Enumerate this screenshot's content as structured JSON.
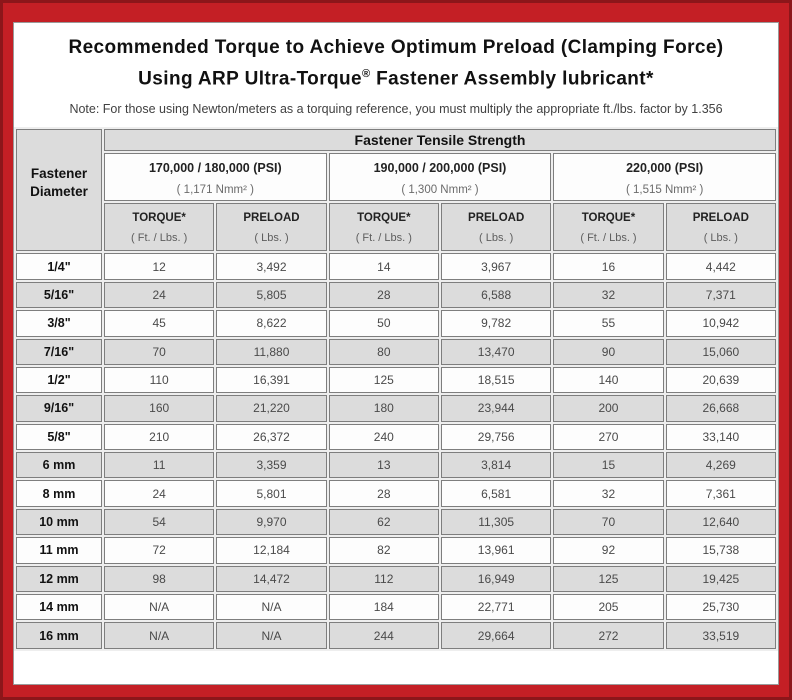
{
  "colors": {
    "frame_outer": "#8c161a",
    "frame_inner": "#c41f25",
    "cell_gray": "#dcdcdc",
    "cell_white": "#fdfdfd",
    "cell_border": "#7e7e7e"
  },
  "title": {
    "line1": "Recommended Torque to Achieve Optimum Preload (Clamping Force)",
    "line2_a": "Using ARP Ultra-Torque",
    "line2_sup": "®",
    "line2_b": " Fastener Assembly lubricant*"
  },
  "note": "Note: For those using Newton/meters as a torquing reference, you must multiply the appropriate ft./lbs. factor by 1.356",
  "table": {
    "corner_label": "Fastener Diameter",
    "group_header": "Fastener Tensile Strength",
    "strength_columns": [
      {
        "psi": "170,000 / 180,000 (PSI)",
        "nmm": "( 1,171 Nmm² )"
      },
      {
        "psi": "190,000 / 200,000 (PSI)",
        "nmm": "( 1,300 Nmm² )"
      },
      {
        "psi": "220,000 (PSI)",
        "nmm": "( 1,515 Nmm² )"
      }
    ],
    "column_headers": [
      {
        "title": "TORQUE*",
        "unit": "( Ft. / Lbs. )"
      },
      {
        "title": "PRELOAD",
        "unit": "( Lbs. )"
      },
      {
        "title": "TORQUE*",
        "unit": "( Ft. / Lbs. )"
      },
      {
        "title": "PRELOAD",
        "unit": "( Lbs. )"
      },
      {
        "title": "TORQUE*",
        "unit": "( Ft. / Lbs. )"
      },
      {
        "title": "PRELOAD",
        "unit": "( Lbs. )"
      }
    ],
    "rows": [
      {
        "diameter": "1/4\"",
        "values": [
          "12",
          "3,492",
          "14",
          "3,967",
          "16",
          "4,442"
        ]
      },
      {
        "diameter": "5/16\"",
        "values": [
          "24",
          "5,805",
          "28",
          "6,588",
          "32",
          "7,371"
        ]
      },
      {
        "diameter": "3/8\"",
        "values": [
          "45",
          "8,622",
          "50",
          "9,782",
          "55",
          "10,942"
        ]
      },
      {
        "diameter": "7/16\"",
        "values": [
          "70",
          "11,880",
          "80",
          "13,470",
          "90",
          "15,060"
        ]
      },
      {
        "diameter": "1/2\"",
        "values": [
          "110",
          "16,391",
          "125",
          "18,515",
          "140",
          "20,639"
        ]
      },
      {
        "diameter": "9/16\"",
        "values": [
          "160",
          "21,220",
          "180",
          "23,944",
          "200",
          "26,668"
        ]
      },
      {
        "diameter": "5/8\"",
        "values": [
          "210",
          "26,372",
          "240",
          "29,756",
          "270",
          "33,140"
        ]
      },
      {
        "diameter": "6 mm",
        "values": [
          "11",
          "3,359",
          "13",
          "3,814",
          "15",
          "4,269"
        ]
      },
      {
        "diameter": "8 mm",
        "values": [
          "24",
          "5,801",
          "28",
          "6,581",
          "32",
          "7,361"
        ]
      },
      {
        "diameter": "10 mm",
        "values": [
          "54",
          "9,970",
          "62",
          "11,305",
          "70",
          "12,640"
        ]
      },
      {
        "diameter": "11 mm",
        "values": [
          "72",
          "12,184",
          "82",
          "13,961",
          "92",
          "15,738"
        ]
      },
      {
        "diameter": "12 mm",
        "values": [
          "98",
          "14,472",
          "112",
          "16,949",
          "125",
          "19,425"
        ]
      },
      {
        "diameter": "14 mm",
        "values": [
          "N/A",
          "N/A",
          "184",
          "22,771",
          "205",
          "25,730"
        ]
      },
      {
        "diameter": "16 mm",
        "values": [
          "N/A",
          "N/A",
          "244",
          "29,664",
          "272",
          "33,519"
        ]
      }
    ]
  }
}
